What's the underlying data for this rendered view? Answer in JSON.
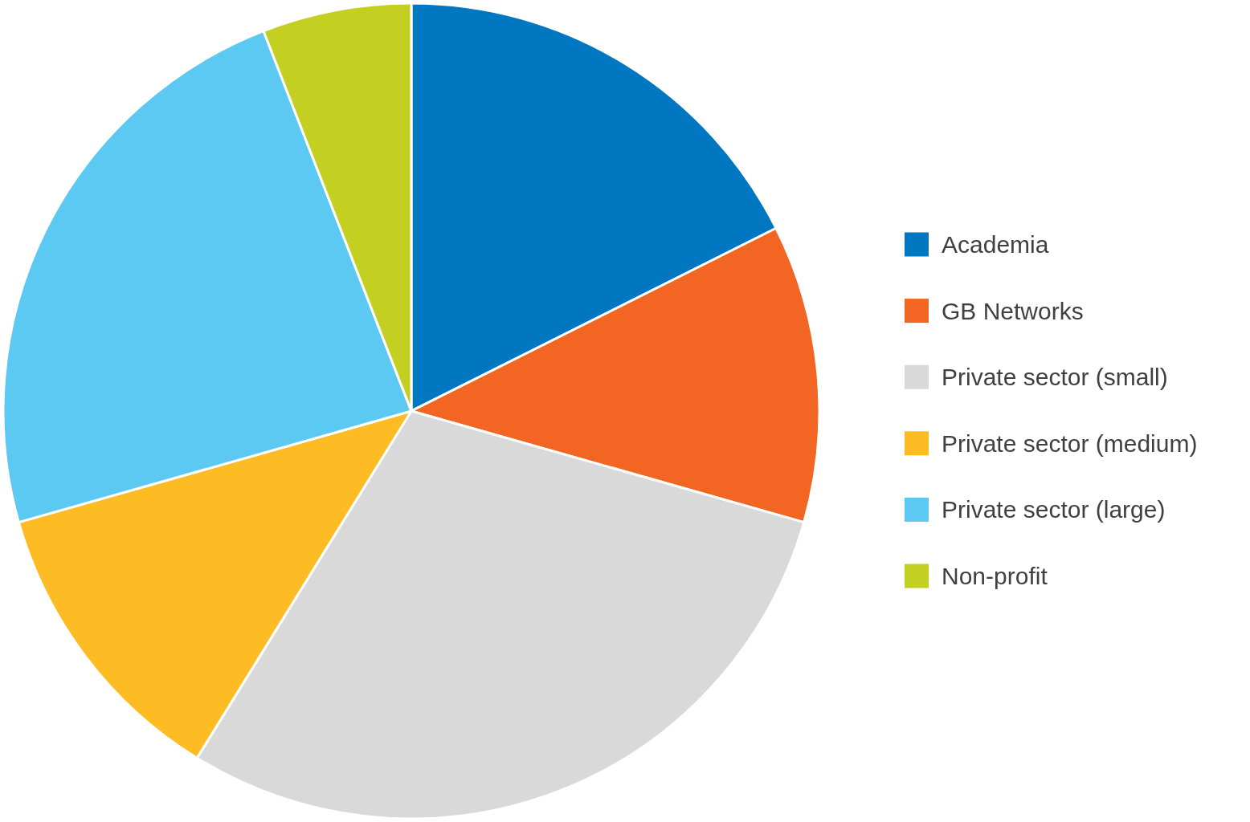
{
  "chart_data": {
    "type": "pie",
    "categories": [
      "Academia",
      "GB Networks",
      "Private sector (small)",
      "Private sector (medium)",
      "Private sector (large)",
      "Non-profit"
    ],
    "values": [
      17.6,
      11.8,
      29.4,
      11.8,
      23.5,
      5.9
    ],
    "colors": [
      "#0077c0",
      "#f26522",
      "#d9d9d9",
      "#fdbb24",
      "#5bc9f2",
      "#c3cf21"
    ],
    "legend": "right"
  }
}
